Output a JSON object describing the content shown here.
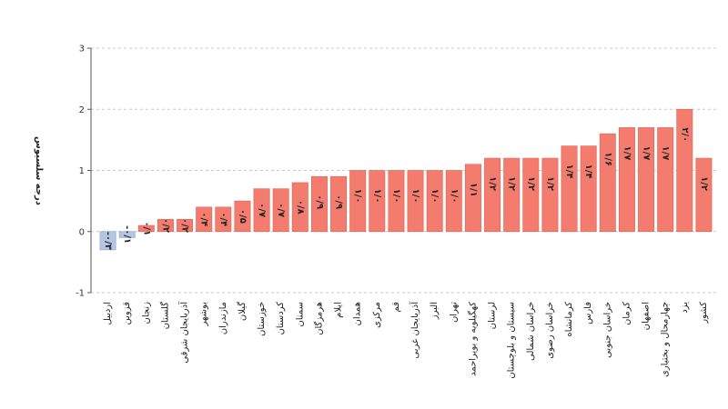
{
  "chart_data": {
    "type": "bar",
    "ylabel": "درجه سلسیوس",
    "ylim": [
      -1,
      3
    ],
    "yticks": [
      -1,
      0,
      1,
      2,
      3
    ],
    "ytick_labels": [
      "-1",
      "0",
      "1",
      "2",
      "3"
    ],
    "grid": true,
    "categories": [
      "اردبیل",
      "قزوین",
      "زنجان",
      "گلستان",
      "آذربایجان شرقی",
      "بوشهر",
      "مازندران",
      "گیلان",
      "خوزستان",
      "کردستان",
      "سمنان",
      "هرمزگان",
      "ایلام",
      "همدان",
      "مرکزی",
      "قم",
      "آذربایجان غربی",
      "البرز",
      "تهران",
      "کهگیلویه و بویراحمد",
      "لرستان",
      "سیستان و بلوچستان",
      "خراسان شمالی",
      "خراسان رضوی",
      "کرمانشاه",
      "فارس",
      "خراسان جنوبی",
      "کرمان",
      "اصفهان",
      "چهارمحال و بختیاری",
      "یزد",
      "کشور"
    ],
    "values": [
      -0.3,
      -0.1,
      0.1,
      0.2,
      0.2,
      0.4,
      0.4,
      0.5,
      0.7,
      0.7,
      0.8,
      0.9,
      0.9,
      1.0,
      1.0,
      1.0,
      1.0,
      1.0,
      1.0,
      1.1,
      1.2,
      1.2,
      1.2,
      1.2,
      1.4,
      1.4,
      1.6,
      1.7,
      1.7,
      1.7,
      2.0,
      1.2
    ],
    "value_labels": [
      "-۰/۳",
      "-۰/۱",
      "۰/۱",
      "۰/۲",
      "۰/۲",
      "۰/۴",
      "۰/۴",
      "۰/۵",
      "۰/۷",
      "۰/۷",
      "۰/۸",
      "۰/۹",
      "۰/۹",
      "۱/۰",
      "۱/۰",
      "۱/۰",
      "۱/۰",
      "۱/۰",
      "۱/۰",
      "۱/۱",
      "۱/۲",
      "۱/۲",
      "۱/۲",
      "۱/۲",
      "۱/۴",
      "۱/۴",
      "۱/۶",
      "۱/۷",
      "۱/۷",
      "۱/۷",
      "۲/۰",
      "۱/۲"
    ],
    "colors": {
      "positive": "#f47c6f",
      "negative": "#b3c5e0",
      "positive_stroke": "#e06050",
      "negative_stroke": "#8ea5c8"
    }
  }
}
